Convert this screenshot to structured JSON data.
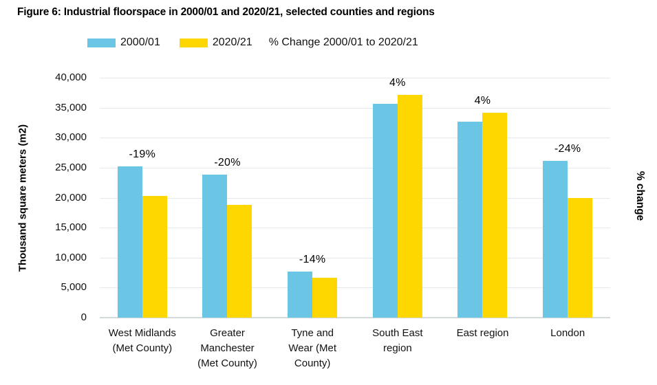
{
  "title": "Figure 6: Industrial floorspace in 2000/01 and 2020/21, selected counties and regions",
  "legend": {
    "series1_label": "2000/01",
    "series2_label": "2020/21",
    "change_note": "% Change 2000/01 to 2020/21"
  },
  "colors": {
    "series1": "#6bc6e5",
    "series2": "#ffd700",
    "grid": "#e4e9ec",
    "baseline": "#d4d9db",
    "text": "#111111"
  },
  "chart_data": {
    "type": "bar",
    "title": "Figure 6: Industrial floorspace in 2000/01 and 2020/21, selected counties and regions",
    "categories": [
      "West Midlands\n(Met County)",
      "Greater\nManchester\n(Met County)",
      "Tyne and\nWear (Met\nCounty)",
      "South East\nregion",
      "East region",
      "London"
    ],
    "series": [
      {
        "name": "2000/01",
        "color_key": "series1",
        "values": [
          25200,
          23800,
          7700,
          35700,
          32700,
          26100
        ]
      },
      {
        "name": "2020/21",
        "color_key": "series2",
        "values": [
          20300,
          18800,
          6600,
          37100,
          34100,
          19900
        ]
      }
    ],
    "change_labels": [
      "-19%",
      "-20%",
      "-14%",
      "4%",
      "4%",
      "-24%"
    ],
    "xlabel": "",
    "ylabel": "Thousand square meters (m2)",
    "y2label": "% change",
    "ylim": [
      0,
      40000
    ],
    "ytick_step": 5000,
    "ytick_labels": [
      "0",
      "5,000",
      "10,000",
      "15,000",
      "20,000",
      "25,000",
      "30,000",
      "35,000",
      "40,000"
    ],
    "grid": true,
    "legend_position": "top"
  }
}
